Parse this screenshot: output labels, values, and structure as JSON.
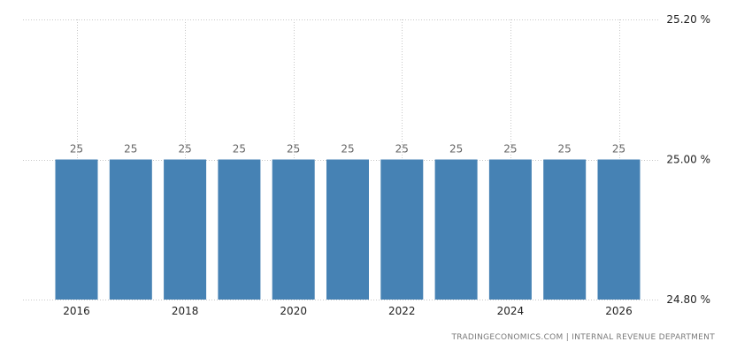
{
  "chart_data": {
    "type": "bar",
    "x": [
      2016,
      2017,
      2018,
      2019,
      2020,
      2021,
      2022,
      2023,
      2024,
      2025,
      2026
    ],
    "values": [
      25,
      25,
      25,
      25,
      25,
      25,
      25,
      25,
      25,
      25,
      25
    ],
    "data_labels": [
      "25",
      "25",
      "25",
      "25",
      "25",
      "25",
      "25",
      "25",
      "25",
      "25",
      "25"
    ],
    "x_tick_labels": [
      "2016",
      "2018",
      "2020",
      "2022",
      "2024",
      "2026"
    ],
    "x_tick_values": [
      2016,
      2018,
      2020,
      2022,
      2024,
      2026
    ],
    "y_tick_labels": [
      "25.20 %",
      "25.00 %",
      "24.80 %"
    ],
    "y_tick_values": [
      25.2,
      25.0,
      24.8
    ],
    "ylim": [
      24.8,
      25.2
    ],
    "y_axis_position": "right",
    "grid": true,
    "title": "",
    "xlabel": "",
    "ylabel": ""
  },
  "colors": {
    "bar": "#4682b4",
    "grid": "#c8c8c8",
    "data_label": "#666666",
    "tick_label": "#222222",
    "source": "#7a7a7a"
  },
  "source_text": "TRADINGECONOMICS.COM  |  INTERNAL REVENUE DEPARTMENT"
}
